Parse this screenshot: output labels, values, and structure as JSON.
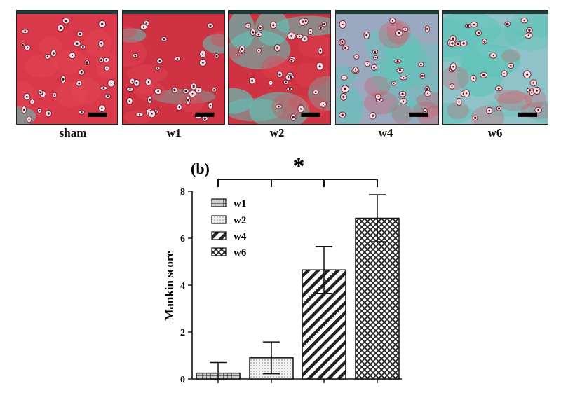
{
  "panel_a": {
    "images": [
      {
        "label": "sham",
        "base": "#d9394a",
        "teal": 0.05
      },
      {
        "label": "w1",
        "base": "#cf3343",
        "teal": 0.2
      },
      {
        "label": "w2",
        "base": "#cf3343",
        "teal": 0.55
      },
      {
        "label": "w4",
        "base": "#9aa8c0",
        "teal": 0.75
      },
      {
        "label": "w6",
        "base": "#8fc3c9",
        "teal": 0.8
      }
    ]
  },
  "chart_data": {
    "type": "bar",
    "panel_label": "(b)",
    "significance": "*",
    "categories": [
      "w1",
      "w2",
      "w4",
      "w6"
    ],
    "values": [
      0.25,
      0.9,
      4.65,
      6.85
    ],
    "errors": [
      0.45,
      0.68,
      1.0,
      1.0
    ],
    "ylabel": "Mankin score",
    "ylim": [
      0,
      8
    ],
    "yticks": [
      "0",
      "2",
      "4",
      "6",
      "8"
    ],
    "legend": [
      "w1",
      "w2",
      "w4",
      "w6"
    ],
    "legend_position": "top-left",
    "patterns": [
      "grid",
      "dots",
      "diagonal",
      "crosshatch"
    ]
  }
}
